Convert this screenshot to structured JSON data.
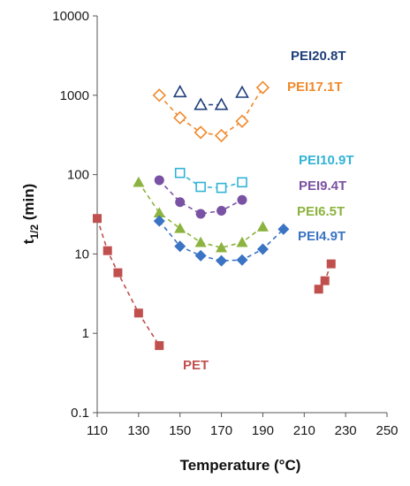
{
  "chart_data": {
    "type": "scatter",
    "title": "",
    "xlabel": "Temperature (°C)",
    "ylabel_main": "t",
    "ylabel_sub": "1/2",
    "ylabel_unit": " (min)",
    "xlim": [
      110,
      250
    ],
    "ylim": [
      0.1,
      10000
    ],
    "yscale": "log",
    "grid": false,
    "x_ticks": [
      110,
      130,
      150,
      170,
      190,
      210,
      230,
      250
    ],
    "y_ticks": [
      0.1,
      1,
      10,
      100,
      1000,
      10000
    ],
    "y_tick_labels": [
      "0.1",
      "1",
      "10",
      "100",
      "1000",
      "10000"
    ],
    "series": [
      {
        "name": "PEI20.8T",
        "color": "#1f3f7a",
        "marker": "triangle-open",
        "points": [
          [
            150,
            1100
          ],
          [
            160,
            760
          ],
          [
            170,
            760
          ],
          [
            180,
            1080
          ]
        ],
        "fit": [
          [
            160,
            760
          ],
          [
            170,
            760
          ]
        ]
      },
      {
        "name": "PEI17.1T",
        "color": "#f08a2c",
        "marker": "diamond-open",
        "points": [
          [
            140,
            1000
          ],
          [
            150,
            520
          ],
          [
            160,
            340
          ],
          [
            170,
            310
          ],
          [
            180,
            470
          ],
          [
            190,
            1250
          ]
        ],
        "fit": [
          [
            140,
            1000
          ],
          [
            150,
            520
          ],
          [
            160,
            340
          ],
          [
            170,
            310
          ],
          [
            180,
            470
          ],
          [
            190,
            1250
          ]
        ]
      },
      {
        "name": "PEI10.9T",
        "color": "#33b3d6",
        "marker": "square-open",
        "points": [
          [
            150,
            105
          ],
          [
            160,
            70
          ],
          [
            170,
            68
          ],
          [
            180,
            80
          ]
        ],
        "fit": [
          [
            150,
            105
          ],
          [
            160,
            70
          ],
          [
            170,
            68
          ],
          [
            180,
            80
          ]
        ]
      },
      {
        "name": "PEI9.4T",
        "color": "#7a52a3",
        "marker": "circle",
        "points": [
          [
            140,
            85
          ],
          [
            150,
            45
          ],
          [
            160,
            32
          ],
          [
            170,
            35
          ],
          [
            180,
            48
          ]
        ],
        "fit": [
          [
            140,
            85
          ],
          [
            150,
            45
          ],
          [
            160,
            32
          ],
          [
            170,
            35
          ],
          [
            180,
            48
          ]
        ]
      },
      {
        "name": "PEI6.5T",
        "color": "#8cb33f",
        "marker": "triangle",
        "points": [
          [
            130,
            80
          ],
          [
            140,
            33
          ],
          [
            150,
            21
          ],
          [
            160,
            14
          ],
          [
            170,
            12
          ],
          [
            180,
            14
          ],
          [
            190,
            22
          ]
        ],
        "fit": [
          [
            130,
            80
          ],
          [
            140,
            33
          ],
          [
            150,
            21
          ],
          [
            160,
            14
          ],
          [
            170,
            12
          ],
          [
            180,
            14
          ],
          [
            190,
            22
          ]
        ]
      },
      {
        "name": "PEI4.9T",
        "color": "#3b74c4",
        "marker": "diamond",
        "points": [
          [
            140,
            26
          ],
          [
            150,
            12.5
          ],
          [
            160,
            9.5
          ],
          [
            170,
            8.2
          ],
          [
            180,
            8.4
          ],
          [
            190,
            11.5
          ],
          [
            200,
            20.5
          ]
        ],
        "fit": [
          [
            140,
            26
          ],
          [
            150,
            12.5
          ],
          [
            160,
            9.5
          ],
          [
            170,
            8.2
          ],
          [
            180,
            8.4
          ],
          [
            190,
            11.5
          ],
          [
            200,
            20.5
          ]
        ]
      },
      {
        "name": "PET",
        "color": "#c0504d",
        "marker": "square",
        "points": [
          [
            110,
            28
          ],
          [
            115,
            11
          ],
          [
            120,
            5.8
          ],
          [
            130,
            1.8
          ],
          [
            140,
            0.7
          ],
          [
            217,
            3.6
          ],
          [
            220,
            4.6
          ],
          [
            223,
            7.5
          ]
        ],
        "fit": [
          [
            110,
            28
          ],
          [
            115,
            11
          ],
          [
            120,
            5.8
          ],
          [
            130,
            1.8
          ],
          [
            140,
            0.7
          ]
        ],
        "fit2": [
          [
            217,
            3.6
          ],
          [
            220,
            4.6
          ],
          [
            223,
            7.5
          ]
        ]
      }
    ]
  }
}
